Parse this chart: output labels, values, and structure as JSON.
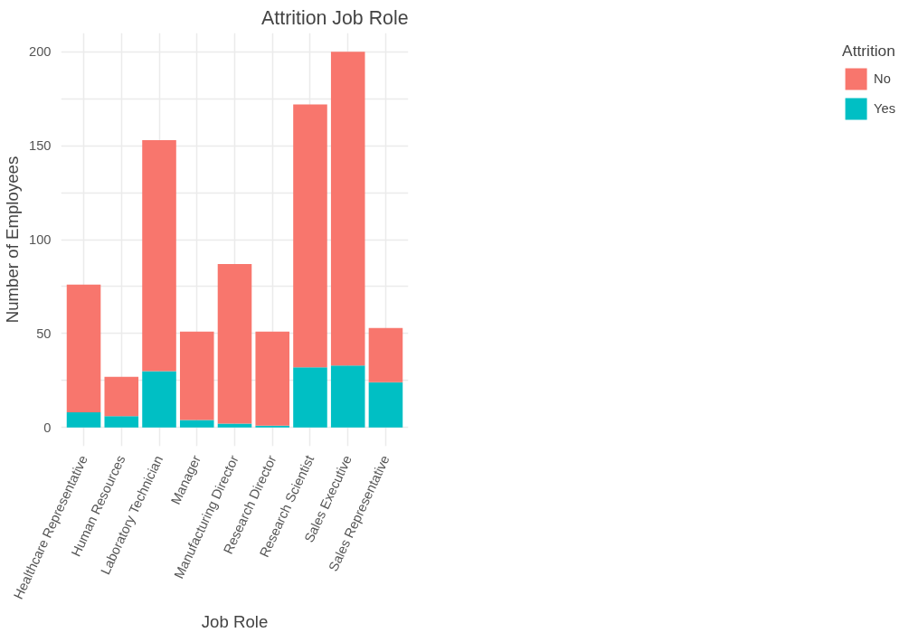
{
  "chart_data": {
    "type": "bar",
    "title": "Attrition Job Role",
    "xlabel": "Job Role",
    "ylabel": "Number of Employees",
    "legend_title": "Attrition",
    "categories": [
      "Healthcare Representative",
      "Human Resources",
      "Laboratory Technician",
      "Manager",
      "Manufacturing Director",
      "Research Director",
      "Research Scientist",
      "Sales Executive",
      "Sales Representative"
    ],
    "stacked": true,
    "series": [
      {
        "name": "Yes",
        "color": "#00bfc4",
        "values": [
          8,
          6,
          30,
          4,
          2,
          1,
          32,
          33,
          24
        ]
      },
      {
        "name": "No",
        "color": "#f8766d",
        "values": [
          68,
          21,
          123,
          47,
          85,
          50,
          140,
          167,
          29
        ]
      }
    ],
    "ylim": [
      -10,
      210
    ],
    "yticks": [
      0,
      {
        "value": 25,
        "label": null
      },
      50,
      {
        "value": 75,
        "label": null
      },
      100,
      {
        "value": 125,
        "label": null
      },
      150,
      {
        "value": 175,
        "label": null
      },
      200
    ],
    "grid": true,
    "legend": "right"
  }
}
